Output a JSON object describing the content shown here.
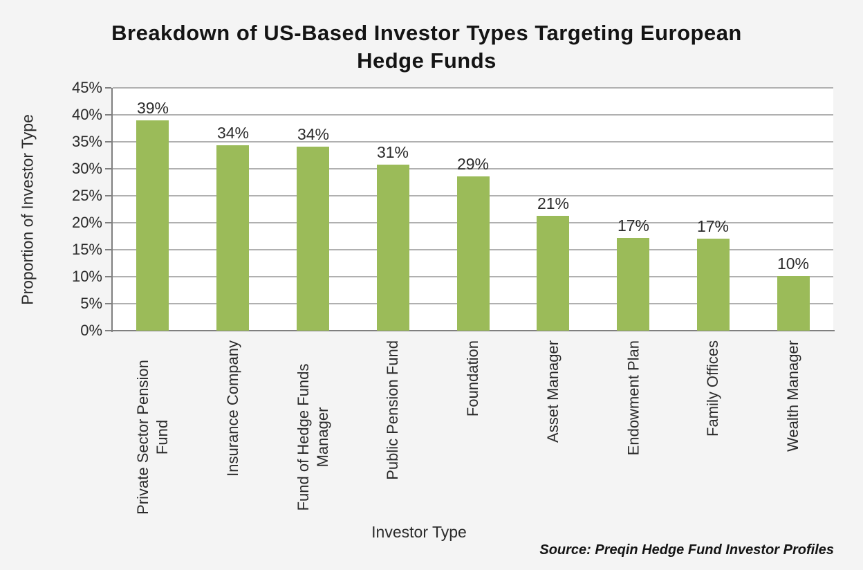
{
  "page": {
    "background_color": "#f4f4f4"
  },
  "chart_data": {
    "type": "bar",
    "title": "Breakdown of US-Based Investor Types Targeting European Hedge Funds",
    "xlabel": "Investor Type",
    "ylabel": "Proportion of Investor Type",
    "source": "Source: Preqin Hedge Fund Investor Profiles",
    "categories": [
      "Private Sector Pension Fund",
      "Insurance Company",
      "Fund of Hedge Funds Manager",
      "Public Pension Fund",
      "Foundation",
      "Asset Manager",
      "Endowment Plan",
      "Family Offices",
      "Wealth Manager"
    ],
    "values": [
      39.0,
      34.3,
      34.1,
      30.8,
      28.6,
      21.3,
      17.2,
      17.0,
      10.1
    ],
    "value_labels": [
      "39%",
      "34%",
      "34%",
      "31%",
      "29%",
      "21%",
      "17%",
      "17%",
      "10%"
    ],
    "ylim": [
      0,
      45
    ],
    "ytick_labels": [
      "45%",
      "40%",
      "35%",
      "30%",
      "25%",
      "20%",
      "15%",
      "10%",
      "5%",
      "0%"
    ],
    "grid": true,
    "legend": "none",
    "bar_color": "#9bbb59",
    "plot_background": "#ffffff",
    "grid_color": "#b0b0b0",
    "axis_color": "#7f7f7f"
  }
}
